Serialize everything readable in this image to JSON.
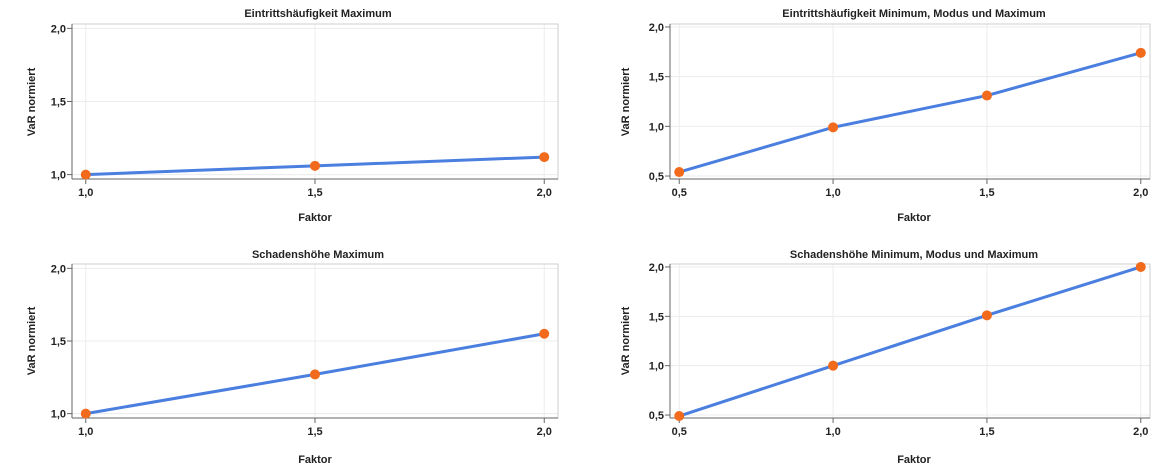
{
  "chart_data": [
    {
      "type": "line",
      "title": "Eintrittshäufigkeit Maximum",
      "xlabel": "Faktor",
      "ylabel": "VaR normiert",
      "x": [
        1.0,
        1.5,
        2.0
      ],
      "xticks": [
        "1,0",
        "1,5",
        "2,0"
      ],
      "xlim": [
        0.97,
        2.03
      ],
      "yticks": [
        "1,0",
        "1,5",
        "2,0"
      ],
      "ylim": [
        0.97,
        2.03
      ],
      "series": [
        {
          "values": [
            1.0,
            1.06,
            1.12
          ]
        }
      ]
    },
    {
      "type": "line",
      "title": "Eintrittshäufigkeit Minimum, Modus und Maximum",
      "xlabel": "Faktor",
      "ylabel": "VaR normiert",
      "x": [
        0.5,
        1.0,
        1.5,
        2.0
      ],
      "xticks": [
        "0,5",
        "1,0",
        "1,5",
        "2,0"
      ],
      "xlim": [
        0.47,
        2.03
      ],
      "yticks": [
        "0,5",
        "1,0",
        "1,5",
        "2,0"
      ],
      "ylim": [
        0.47,
        2.03
      ],
      "series": [
        {
          "values": [
            0.54,
            0.99,
            1.31,
            1.74
          ]
        }
      ]
    },
    {
      "type": "line",
      "title": "Schadenshöhe Maximum",
      "xlabel": "Faktor",
      "ylabel": "VaR normiert",
      "x": [
        1.0,
        1.5,
        2.0
      ],
      "xticks": [
        "1,0",
        "1,5",
        "2,0"
      ],
      "xlim": [
        0.97,
        2.03
      ],
      "yticks": [
        "1,0",
        "1,5",
        "2,0"
      ],
      "ylim": [
        0.97,
        2.03
      ],
      "series": [
        {
          "values": [
            1.0,
            1.27,
            1.55
          ]
        }
      ]
    },
    {
      "type": "line",
      "title": "Schadenshöhe Minimum, Modus und Maximum",
      "xlabel": "Faktor",
      "ylabel": "VaR normiert",
      "x": [
        0.5,
        1.0,
        1.5,
        2.0
      ],
      "xticks": [
        "0,5",
        "1,0",
        "1,5",
        "2,0"
      ],
      "xlim": [
        0.47,
        2.03
      ],
      "yticks": [
        "0,5",
        "1,0",
        "1,5",
        "2,0"
      ],
      "ylim": [
        0.47,
        2.03
      ],
      "series": [
        {
          "values": [
            0.49,
            1.0,
            1.51,
            2.0
          ]
        }
      ]
    }
  ],
  "colors": {
    "line": "#4a7fe0",
    "marker": "#f26b1d"
  }
}
